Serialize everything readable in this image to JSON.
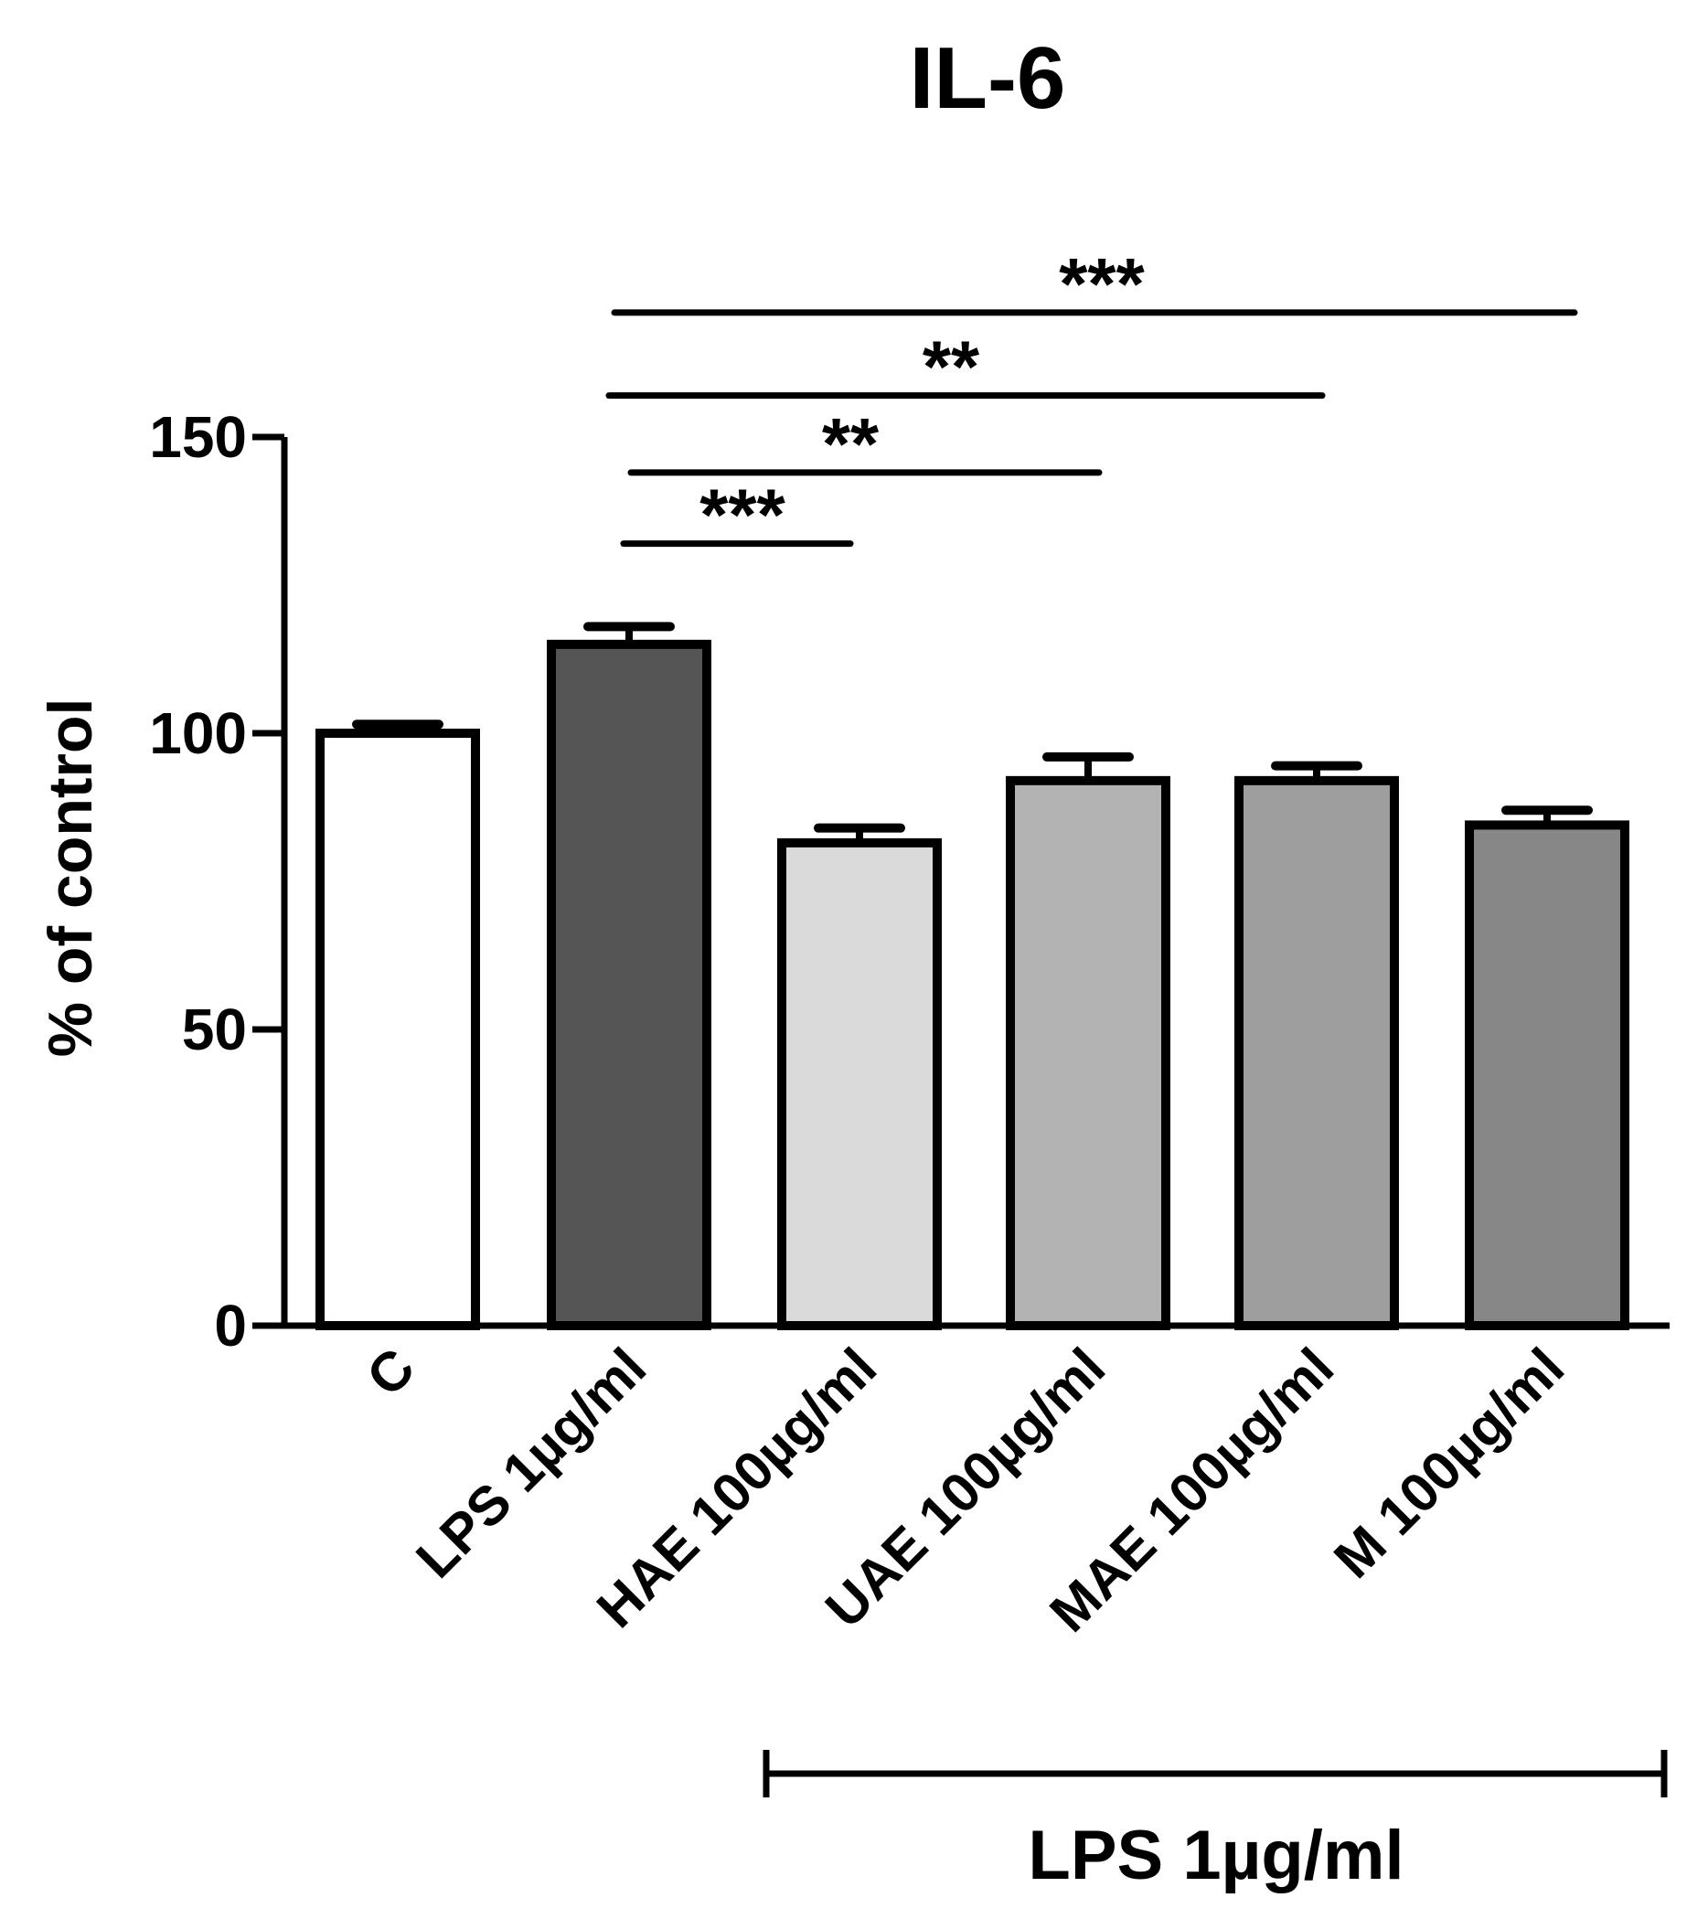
{
  "chart_data": {
    "type": "bar",
    "title": "IL-6",
    "ylabel": "% of control",
    "xlabel": "",
    "ylim": [
      0,
      150
    ],
    "yticks": [
      0,
      50,
      100,
      150
    ],
    "categories": [
      "C",
      "LPS 1µg/ml",
      "HAE 100µg/ml",
      "UAE 100µg/ml",
      "MAE 100µg/ml",
      "M 100µg/ml"
    ],
    "values": [
      100,
      115,
      81.5,
      92,
      92,
      84.5
    ],
    "errors": [
      1.5,
      3,
      2.5,
      4,
      2.5,
      2.5
    ],
    "colors": [
      "#ffffff",
      "#555555",
      "#dadada",
      "#b3b3b3",
      "#9e9e9e",
      "#878787"
    ],
    "significance": [
      {
        "from": "LPS 1µg/ml",
        "to": "HAE 100µg/ml",
        "label": "***",
        "level": 132
      },
      {
        "from": "LPS 1µg/ml",
        "to": "UAE 100µg/ml",
        "label": "**",
        "level": 144
      },
      {
        "from": "LPS 1µg/ml",
        "to": "MAE 100µg/ml",
        "label": "**",
        "level": 157
      },
      {
        "from": "LPS 1µg/ml",
        "to": "M 100µg/ml",
        "label": "***",
        "level": 171
      }
    ],
    "group_bracket": {
      "from": "HAE 100µg/ml",
      "to": "M 100µg/ml",
      "label": "LPS 1µg/ml"
    }
  }
}
